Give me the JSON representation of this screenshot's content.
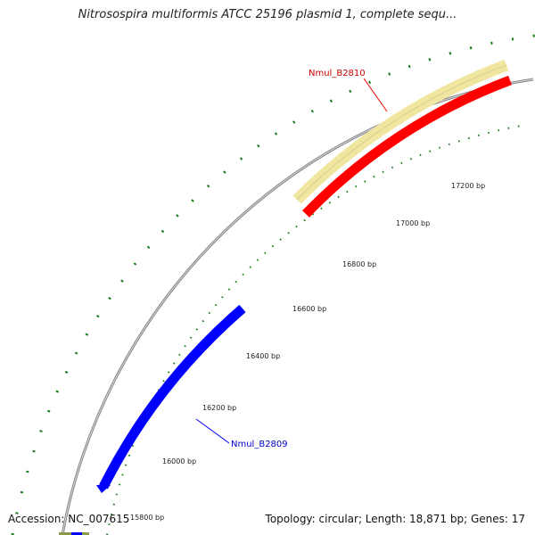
{
  "title": "Nitrosospira multiformis ATCC 25196 plasmid 1, complete sequ...",
  "footer": {
    "accession": "Accession: NC_007615",
    "summary": "Topology: circular; Length: 18,871 bp; Genes: 17"
  },
  "colors": {
    "backbone": "#888888",
    "tick": "#1a7a1a",
    "forward_gene": "#ff0000",
    "reverse_gene": "#0000ff",
    "cds": "#f0e6a0"
  },
  "ticks": [
    {
      "label": "15800 bp"
    },
    {
      "label": "16000 bp"
    },
    {
      "label": "16200 bp"
    },
    {
      "label": "16400 bp"
    },
    {
      "label": "16600 bp"
    },
    {
      "label": "16800 bp"
    },
    {
      "label": "17000 bp"
    },
    {
      "label": "17200 bp"
    }
  ],
  "genes": [
    {
      "name": "Nmul_B2810",
      "strand": "forward"
    },
    {
      "name": "Nmul_B2809",
      "strand": "reverse"
    }
  ]
}
